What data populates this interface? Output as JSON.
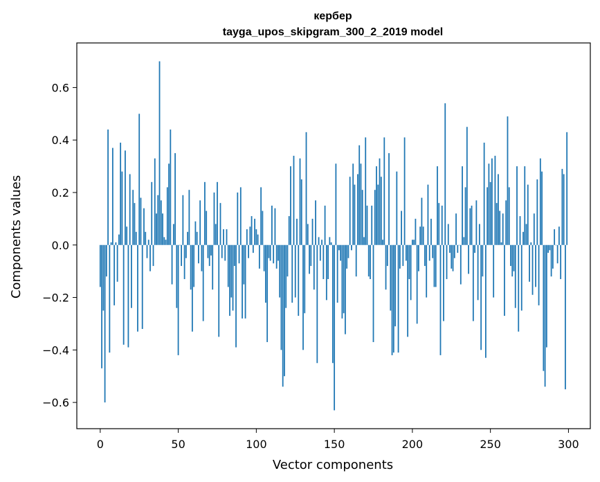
{
  "chart_data": {
    "type": "bar",
    "title": "кербер",
    "subtitle": "tayga_upos_skipgram_300_2_2019 model",
    "xlabel": "Vector components",
    "ylabel": "Components values",
    "xlim": [
      -15,
      314
    ],
    "ylim": [
      -0.7,
      0.77
    ],
    "x_ticks": [
      0,
      50,
      100,
      150,
      200,
      250,
      300
    ],
    "y_ticks": [
      -0.6,
      -0.4,
      -0.2,
      0.0,
      0.2,
      0.4,
      0.6
    ],
    "y_tick_labels": [
      "−0.6",
      "−0.4",
      "−0.2",
      "0.0",
      "0.2",
      "0.4",
      "0.6"
    ],
    "grid": false,
    "bar_color": "#1f77b4",
    "x": "0..299 (component index)",
    "values": [
      -0.16,
      -0.47,
      -0.25,
      -0.6,
      -0.12,
      0.44,
      -0.41,
      0.01,
      0.37,
      -0.23,
      0.01,
      -0.14,
      0.04,
      0.39,
      0.28,
      -0.38,
      0.36,
      0.07,
      -0.39,
      0.27,
      -0.24,
      0.21,
      0.16,
      0.05,
      -0.33,
      0.5,
      0.18,
      -0.32,
      0.14,
      0.05,
      -0.05,
      0.02,
      -0.1,
      0.24,
      -0.08,
      0.33,
      0.12,
      0.19,
      0.7,
      0.17,
      0.12,
      0.03,
      0.02,
      0.22,
      0.31,
      0.44,
      -0.15,
      0.08,
      0.35,
      -0.24,
      -0.42,
      0.0,
      -0.08,
      0.19,
      -0.13,
      -0.05,
      0.05,
      0.21,
      -0.17,
      -0.33,
      -0.16,
      0.09,
      0.05,
      -0.07,
      0.17,
      -0.1,
      -0.29,
      0.24,
      0.13,
      -0.05,
      -0.08,
      -0.04,
      -0.17,
      0.2,
      0.08,
      0.24,
      -0.35,
      0.16,
      -0.05,
      0.06,
      -0.06,
      0.06,
      -0.16,
      -0.27,
      -0.2,
      -0.25,
      -0.08,
      -0.39,
      0.2,
      -0.07,
      0.22,
      -0.28,
      -0.15,
      -0.28,
      0.06,
      -0.05,
      0.07,
      0.11,
      -0.03,
      0.1,
      0.06,
      0.04,
      -0.09,
      0.22,
      0.13,
      -0.1,
      -0.22,
      -0.37,
      -0.05,
      -0.06,
      0.15,
      -0.07,
      0.14,
      -0.09,
      -0.06,
      -0.2,
      -0.4,
      -0.54,
      -0.5,
      -0.24,
      -0.12,
      0.11,
      0.3,
      -0.22,
      0.34,
      -0.2,
      0.1,
      -0.27,
      0.33,
      0.25,
      -0.4,
      -0.26,
      0.43,
      0.08,
      -0.11,
      -0.08,
      0.1,
      -0.17,
      0.17,
      -0.45,
      0.03,
      -0.06,
      0.02,
      -0.13,
      0.15,
      -0.21,
      -0.13,
      0.03,
      0.01,
      -0.45,
      -0.63,
      0.31,
      -0.22,
      -0.02,
      -0.06,
      -0.28,
      -0.26,
      -0.34,
      -0.09,
      -0.05,
      0.26,
      -0.02,
      0.31,
      0.23,
      -0.12,
      0.27,
      0.38,
      0.31,
      0.21,
      0.03,
      0.41,
      0.15,
      -0.12,
      -0.13,
      0.15,
      -0.37,
      0.21,
      0.3,
      0.23,
      0.33,
      0.26,
      0.02,
      0.41,
      -0.17,
      -0.08,
      0.35,
      -0.25,
      -0.42,
      -0.41,
      -0.31,
      0.28,
      -0.41,
      -0.09,
      0.13,
      -0.08,
      0.41,
      -0.06,
      -0.35,
      -0.13,
      -0.21,
      0.02,
      0.02,
      0.1,
      -0.3,
      -0.1,
      0.07,
      0.18,
      0.07,
      -0.08,
      -0.2,
      0.23,
      -0.06,
      0.1,
      -0.05,
      -0.16,
      -0.16,
      0.3,
      0.16,
      -0.42,
      0.15,
      -0.29,
      0.54,
      -0.13,
      0.08,
      -0.03,
      -0.09,
      -0.1,
      -0.05,
      0.12,
      -0.03,
      0.0,
      -0.15,
      0.3,
      0.03,
      0.22,
      0.45,
      -0.11,
      0.14,
      0.15,
      -0.29,
      -0.03,
      0.17,
      -0.21,
      0.08,
      -0.4,
      -0.12,
      0.39,
      -0.43,
      0.22,
      0.31,
      0.24,
      0.33,
      -0.2,
      0.34,
      0.16,
      0.27,
      0.13,
      0.01,
      0.12,
      -0.27,
      0.17,
      0.49,
      0.22,
      -0.08,
      -0.12,
      -0.1,
      -0.24,
      0.3,
      -0.33,
      0.11,
      -0.25,
      0.05,
      0.3,
      0.08,
      0.23,
      -0.14,
      0.01,
      -0.19,
      0.12,
      -0.16,
      0.25,
      -0.23,
      0.33,
      0.28,
      -0.48,
      -0.54,
      -0.39,
      -0.03,
      -0.02,
      -0.12,
      -0.09,
      0.06,
      0.0,
      -0.07,
      0.07,
      -0.13,
      0.29,
      0.27,
      -0.55,
      0.43
    ]
  }
}
